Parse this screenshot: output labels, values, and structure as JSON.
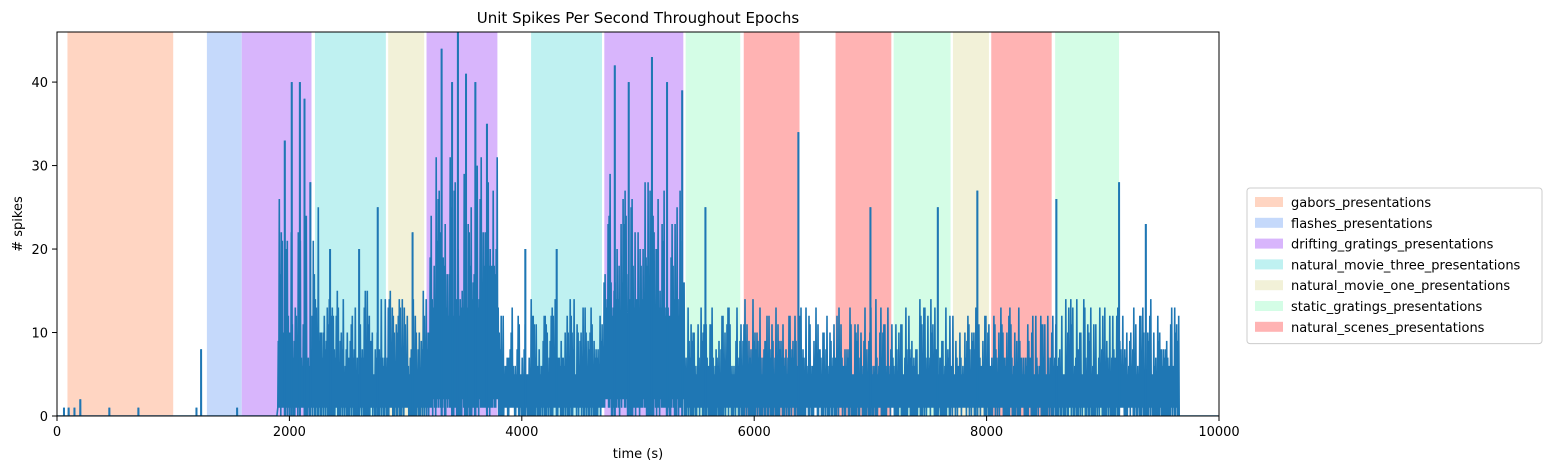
{
  "chart_data": {
    "type": "line",
    "title": "Unit Spikes Per Second Throughout Epochs",
    "xlabel": "time (s)",
    "ylabel": "# spikes",
    "xlim": [
      0,
      10000
    ],
    "ylim": [
      0,
      46
    ],
    "x_ticks": [
      0,
      2000,
      4000,
      6000,
      8000,
      10000
    ],
    "y_ticks": [
      0,
      10,
      20,
      30,
      40
    ],
    "grid": false,
    "legend_position": "right",
    "line_color": "#1f77b4",
    "epoch_types": [
      {
        "name": "gabors_presentations",
        "color": "#ffd5c2"
      },
      {
        "name": "flashes_presentations",
        "color": "#c5d9fb"
      },
      {
        "name": "drifting_gratings_presentations",
        "color": "#d8b5fc"
      },
      {
        "name": "natural_movie_three_presentations",
        "color": "#bff1f1"
      },
      {
        "name": "natural_movie_one_presentations",
        "color": "#f2f1d8"
      },
      {
        "name": "static_gratings_presentations",
        "color": "#d4fde6"
      },
      {
        "name": "natural_scenes_presentations",
        "color": "#ffb3b3"
      }
    ],
    "epochs": [
      {
        "type": 0,
        "start": 90,
        "end": 1000
      },
      {
        "type": 1,
        "start": 1290,
        "end": 1590
      },
      {
        "type": 2,
        "start": 1590,
        "end": 2190
      },
      {
        "type": 3,
        "start": 2220,
        "end": 2830
      },
      {
        "type": 4,
        "start": 2850,
        "end": 3160
      },
      {
        "type": 2,
        "start": 3180,
        "end": 3790
      },
      {
        "type": 3,
        "start": 4080,
        "end": 4690
      },
      {
        "type": 2,
        "start": 4710,
        "end": 5390
      },
      {
        "type": 5,
        "start": 5410,
        "end": 5880
      },
      {
        "type": 6,
        "start": 5910,
        "end": 6390
      },
      {
        "type": 6,
        "start": 6700,
        "end": 7180
      },
      {
        "type": 5,
        "start": 7200,
        "end": 7690
      },
      {
        "type": 4,
        "start": 7710,
        "end": 8020
      },
      {
        "type": 6,
        "start": 8040,
        "end": 8560
      },
      {
        "type": 5,
        "start": 8590,
        "end": 9140
      }
    ],
    "series": [
      {
        "description": "spikes per 1-second bin; spike envelope by time segment",
        "envelope": [
          {
            "x0": 0,
            "x1": 1900,
            "base": 0,
            "amp": 1
          },
          {
            "x0": 1900,
            "x1": 2250,
            "base": 6,
            "amp": 20
          },
          {
            "x0": 2250,
            "x1": 3200,
            "base": 5,
            "amp": 10
          },
          {
            "x0": 3200,
            "x1": 3800,
            "base": 12,
            "amp": 20
          },
          {
            "x0": 3800,
            "x1": 4700,
            "base": 5,
            "amp": 9
          },
          {
            "x0": 4700,
            "x1": 5400,
            "base": 12,
            "amp": 18
          },
          {
            "x0": 5400,
            "x1": 9650,
            "base": 5,
            "amp": 9
          },
          {
            "x0": 9650,
            "x1": 10000,
            "base": 0,
            "amp": 0
          }
        ],
        "peaks": [
          {
            "x": 60,
            "y": 1
          },
          {
            "x": 100,
            "y": 1
          },
          {
            "x": 150,
            "y": 1
          },
          {
            "x": 200,
            "y": 2
          },
          {
            "x": 450,
            "y": 1
          },
          {
            "x": 700,
            "y": 1
          },
          {
            "x": 1200,
            "y": 1
          },
          {
            "x": 1240,
            "y": 8
          },
          {
            "x": 1550,
            "y": 1
          },
          {
            "x": 1960,
            "y": 33
          },
          {
            "x": 2020,
            "y": 40
          },
          {
            "x": 2090,
            "y": 40
          },
          {
            "x": 2130,
            "y": 38
          },
          {
            "x": 2180,
            "y": 28
          },
          {
            "x": 2350,
            "y": 20
          },
          {
            "x": 2600,
            "y": 20
          },
          {
            "x": 2760,
            "y": 25
          },
          {
            "x": 3060,
            "y": 22
          },
          {
            "x": 3310,
            "y": 44
          },
          {
            "x": 3400,
            "y": 40
          },
          {
            "x": 3450,
            "y": 46
          },
          {
            "x": 3520,
            "y": 41
          },
          {
            "x": 3600,
            "y": 40
          },
          {
            "x": 3700,
            "y": 35
          },
          {
            "x": 4030,
            "y": 20
          },
          {
            "x": 4300,
            "y": 20
          },
          {
            "x": 4800,
            "y": 42
          },
          {
            "x": 4920,
            "y": 40
          },
          {
            "x": 5120,
            "y": 43
          },
          {
            "x": 5250,
            "y": 40
          },
          {
            "x": 5380,
            "y": 39
          },
          {
            "x": 5580,
            "y": 25
          },
          {
            "x": 6380,
            "y": 34
          },
          {
            "x": 7000,
            "y": 25
          },
          {
            "x": 7580,
            "y": 25
          },
          {
            "x": 7920,
            "y": 27
          },
          {
            "x": 8600,
            "y": 26
          },
          {
            "x": 9140,
            "y": 28
          },
          {
            "x": 9370,
            "y": 23
          },
          {
            "x": 9650,
            "y": 9
          }
        ]
      }
    ]
  }
}
